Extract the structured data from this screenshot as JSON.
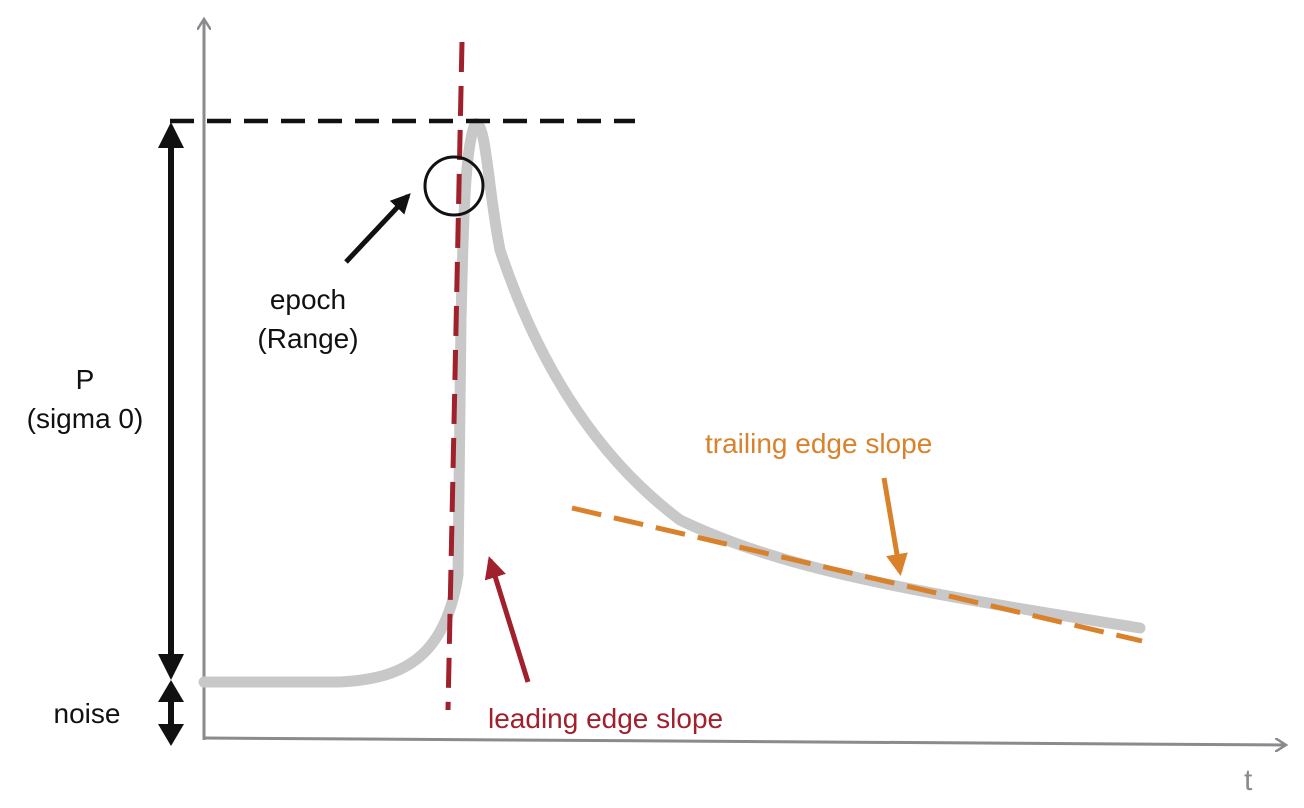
{
  "labels": {
    "epoch_line1": "epoch",
    "epoch_line2": "(Range)",
    "p_line1": "P",
    "p_line2": "(sigma 0)",
    "noise": "noise",
    "leading_edge": "leading edge slope",
    "trailing_edge": "trailing edge slope",
    "x_axis": "t"
  },
  "colors": {
    "axis": "#8a8a8f",
    "waveform": "#c8c8c8",
    "leading_edge": "#a0202c",
    "trailing_edge": "#d9822b",
    "annotation": "#111111"
  }
}
